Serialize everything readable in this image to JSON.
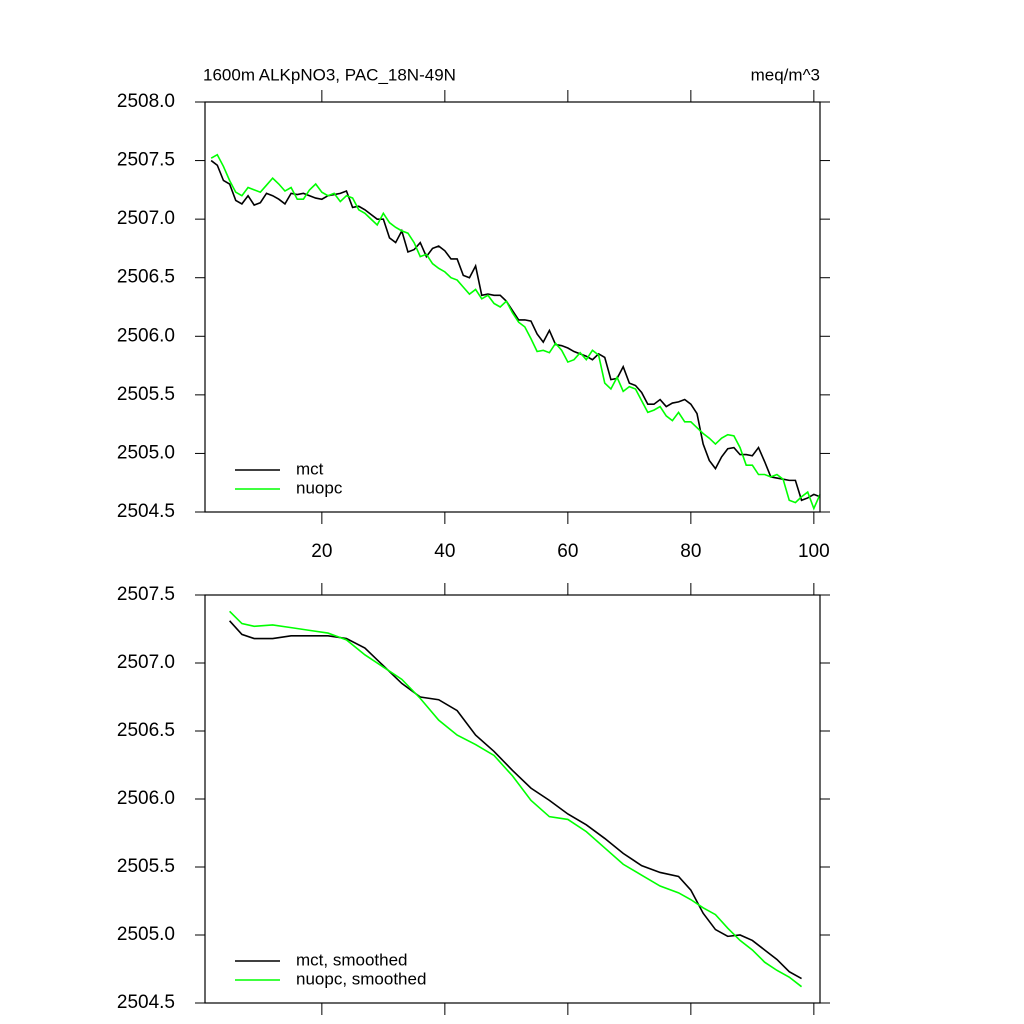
{
  "chart_data": [
    {
      "type": "line",
      "title": "1600m ALKpNO3, PAC_18N-49N",
      "units": "meq/m^3",
      "x": [
        2,
        3,
        4,
        5,
        6,
        7,
        8,
        9,
        10,
        11,
        12,
        13,
        14,
        15,
        16,
        17,
        18,
        19,
        20,
        21,
        22,
        23,
        24,
        25,
        26,
        27,
        28,
        29,
        30,
        31,
        32,
        33,
        34,
        35,
        36,
        37,
        38,
        39,
        40,
        41,
        42,
        43,
        44,
        45,
        46,
        47,
        48,
        49,
        50,
        51,
        52,
        53,
        54,
        55,
        56,
        57,
        58,
        59,
        60,
        61,
        62,
        63,
        64,
        65,
        66,
        67,
        68,
        69,
        70,
        71,
        72,
        73,
        74,
        75,
        76,
        77,
        78,
        79,
        80,
        81,
        82,
        83,
        84,
        85,
        86,
        87,
        88,
        89,
        90,
        91,
        92,
        93,
        94,
        95,
        96,
        97,
        98,
        99,
        100,
        101
      ],
      "series": [
        {
          "name": "mct",
          "color": "#000000",
          "values": [
            2507.5,
            2507.46,
            2507.33,
            2507.3,
            2507.16,
            2507.13,
            2507.2,
            2507.12,
            2507.14,
            2507.22,
            2507.2,
            2507.17,
            2507.13,
            2507.22,
            2507.21,
            2507.22,
            2507.2,
            2507.18,
            2507.17,
            2507.2,
            2507.21,
            2507.22,
            2507.24,
            2507.1,
            2507.11,
            2507.08,
            2507.04,
            2507.0,
            2507.0,
            2506.84,
            2506.8,
            2506.9,
            2506.72,
            2506.74,
            2506.8,
            2506.68,
            2506.75,
            2506.77,
            2506.73,
            2506.66,
            2506.66,
            2506.52,
            2506.5,
            2506.6,
            2506.35,
            2506.36,
            2506.35,
            2506.35,
            2506.3,
            2506.22,
            2506.14,
            2506.14,
            2506.13,
            2506.02,
            2505.95,
            2506.05,
            2505.93,
            2505.92,
            2505.9,
            2505.87,
            2505.85,
            2505.83,
            2505.8,
            2505.85,
            2505.82,
            2505.63,
            2505.64,
            2505.74,
            2505.6,
            2505.58,
            2505.52,
            2505.42,
            2505.42,
            2505.46,
            2505.4,
            2505.43,
            2505.44,
            2505.46,
            2505.42,
            2505.34,
            2505.08,
            2504.94,
            2504.87,
            2504.97,
            2505.04,
            2505.05,
            2504.99,
            2504.99,
            2504.98,
            2505.05,
            2504.93,
            2504.8,
            2504.79,
            2504.78,
            2504.77,
            2504.77,
            2504.6,
            2504.62,
            2504.65,
            2504.63
          ]
        },
        {
          "name": "nuopc",
          "color": "#00ff00",
          "values": [
            2507.52,
            2507.55,
            2507.45,
            2507.33,
            2507.23,
            2507.2,
            2507.27,
            2507.25,
            2507.23,
            2507.29,
            2507.35,
            2507.3,
            2507.24,
            2507.27,
            2507.17,
            2507.17,
            2507.25,
            2507.3,
            2507.23,
            2507.2,
            2507.22,
            2507.15,
            2507.2,
            2507.18,
            2507.08,
            2507.05,
            2507.0,
            2506.95,
            2507.05,
            2506.97,
            2506.93,
            2506.9,
            2506.88,
            2506.8,
            2506.68,
            2506.7,
            2506.62,
            2506.58,
            2506.55,
            2506.5,
            2506.48,
            2506.42,
            2506.36,
            2506.4,
            2506.32,
            2506.35,
            2506.28,
            2506.25,
            2506.3,
            2506.2,
            2506.12,
            2506.08,
            2505.98,
            2505.87,
            2505.88,
            2505.86,
            2505.94,
            2505.88,
            2505.78,
            2505.8,
            2505.86,
            2505.8,
            2505.88,
            2505.84,
            2505.6,
            2505.55,
            2505.65,
            2505.53,
            2505.57,
            2505.55,
            2505.45,
            2505.35,
            2505.37,
            2505.4,
            2505.32,
            2505.28,
            2505.35,
            2505.27,
            2505.27,
            2505.22,
            2505.17,
            2505.13,
            2505.08,
            2505.13,
            2505.16,
            2505.15,
            2505.05,
            2504.9,
            2504.9,
            2504.82,
            2504.82,
            2504.8,
            2504.82,
            2504.78,
            2504.6,
            2504.58,
            2504.63,
            2504.67,
            2504.53,
            2504.65
          ]
        }
      ],
      "xlim": [
        1,
        101
      ],
      "xticks": [
        20,
        40,
        60,
        80,
        100
      ],
      "xtick_labels": true,
      "ylim": [
        2504.5,
        2508
      ],
      "yticks": [
        2504.5,
        {
          "value": 2505,
          "label": "2505.0"
        },
        2505.5,
        {
          "value": 2506,
          "label": "2506.0"
        },
        2506.5,
        {
          "value": 2507,
          "label": "2507.0"
        },
        2507.5,
        {
          "value": 2508,
          "label": "2508.0"
        }
      ],
      "legend": "lower left"
    },
    {
      "type": "line",
      "x": [
        5,
        7,
        9,
        12,
        15,
        18,
        21,
        24,
        27,
        30,
        33,
        36,
        39,
        42,
        45,
        48,
        51,
        54,
        57,
        60,
        63,
        66,
        69,
        72,
        75,
        78,
        80,
        82,
        84,
        86,
        88,
        90,
        92,
        94,
        96,
        98
      ],
      "series": [
        {
          "name": "mct, smoothed",
          "color": "#000000",
          "values": [
            2507.31,
            2507.21,
            2507.18,
            2507.18,
            2507.2,
            2507.2,
            2507.2,
            2507.18,
            2507.11,
            2506.98,
            2506.85,
            2506.75,
            2506.73,
            2506.65,
            2506.47,
            2506.35,
            2506.21,
            2506.08,
            2505.99,
            2505.89,
            2505.81,
            2505.71,
            2505.6,
            2505.51,
            2505.46,
            2505.43,
            2505.33,
            2505.16,
            2505.04,
            2504.99,
            2505.0,
            2504.96,
            2504.89,
            2504.82,
            2504.73,
            2504.68
          ]
        },
        {
          "name": "nuopc, smoothed",
          "color": "#00ff00",
          "values": [
            2507.38,
            2507.29,
            2507.27,
            2507.28,
            2507.26,
            2507.24,
            2507.22,
            2507.17,
            2507.06,
            2506.97,
            2506.88,
            2506.74,
            2506.58,
            2506.47,
            2506.4,
            2506.32,
            2506.17,
            2505.99,
            2505.87,
            2505.85,
            2505.76,
            2505.64,
            2505.52,
            2505.44,
            2505.36,
            2505.31,
            2505.26,
            2505.2,
            2505.15,
            2505.05,
            2504.96,
            2504.89,
            2504.8,
            2504.74,
            2504.69,
            2504.62
          ]
        }
      ],
      "xlim": [
        1,
        101
      ],
      "xticks": [
        20,
        40,
        60,
        80,
        100
      ],
      "xtick_labels": false,
      "ylim": [
        2504.5,
        2507.5
      ],
      "yticks": [
        2504.5,
        {
          "value": 2505,
          "label": "2505.0"
        },
        2505.5,
        {
          "value": 2506,
          "label": "2506.0"
        },
        2506.5,
        {
          "value": 2507,
          "label": "2507.0"
        },
        2507.5
      ],
      "legend": "lower left"
    }
  ]
}
